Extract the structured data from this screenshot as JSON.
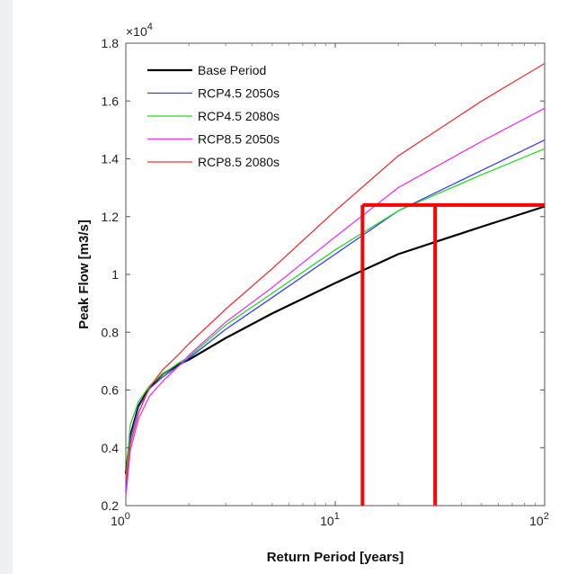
{
  "chart_data": {
    "type": "line",
    "xscale": "log",
    "xlim": [
      1,
      100
    ],
    "ylim": [
      2000,
      18000
    ],
    "y_exponent_label": "×10",
    "y_exponent_power": "4",
    "xlabel": "Return Period [years]",
    "ylabel": "Peak Flow [m3/s]",
    "x_ticks": [
      {
        "value": 1,
        "base": "10",
        "exp": "0"
      },
      {
        "value": 10,
        "base": "10",
        "exp": "1"
      },
      {
        "value": 100,
        "base": "10",
        "exp": "2"
      }
    ],
    "y_ticks": [
      {
        "value": 2000,
        "label": "0.2"
      },
      {
        "value": 4000,
        "label": "0.4"
      },
      {
        "value": 6000,
        "label": "0.6"
      },
      {
        "value": 8000,
        "label": "0.8"
      },
      {
        "value": 10000,
        "label": "1"
      },
      {
        "value": 12000,
        "label": "1.2"
      },
      {
        "value": 14000,
        "label": "1.4"
      },
      {
        "value": 16000,
        "label": "1.6"
      },
      {
        "value": 18000,
        "label": "1.8"
      }
    ],
    "legend_position": "top-left",
    "series": [
      {
        "name": "Base Period",
        "color": "#000000",
        "x": [
          1,
          1.05,
          1.15,
          1.3,
          1.5,
          1.8,
          2,
          3,
          5,
          10,
          20,
          50,
          100
        ],
        "y": [
          3100,
          4400,
          5450,
          6100,
          6550,
          6900,
          7050,
          7800,
          8650,
          9700,
          10700,
          11650,
          12350
        ]
      },
      {
        "name": "RCP4.5 2050s",
        "color": "#3a3aff",
        "x": [
          1,
          1.05,
          1.15,
          1.3,
          1.5,
          1.8,
          2,
          3,
          5,
          10,
          20,
          50,
          100
        ],
        "y": [
          2500,
          4300,
          5400,
          6050,
          6450,
          6850,
          7100,
          8100,
          9200,
          10700,
          12200,
          13600,
          14650
        ]
      },
      {
        "name": "RCP4.5 2080s",
        "color": "#22dd22",
        "x": [
          1,
          1.05,
          1.15,
          1.3,
          1.5,
          1.8,
          2,
          3,
          5,
          10,
          20,
          50,
          100
        ],
        "y": [
          2900,
          4800,
          5600,
          6150,
          6550,
          6950,
          7150,
          8250,
          9350,
          10850,
          12200,
          13450,
          14350
        ]
      },
      {
        "name": "RCP8.5 2050s",
        "color": "#ee33ee",
        "x": [
          1,
          1.05,
          1.15,
          1.3,
          1.5,
          1.8,
          2,
          3,
          5,
          10,
          20,
          50,
          100
        ],
        "y": [
          2300,
          3900,
          5000,
          5800,
          6300,
          6850,
          7200,
          8350,
          9550,
          11300,
          13000,
          14600,
          15750
        ]
      },
      {
        "name": "RCP8.5 2080s",
        "color": "#ee3333",
        "x": [
          1,
          1.05,
          1.15,
          1.3,
          1.5,
          1.8,
          2,
          3,
          5,
          10,
          20,
          50,
          100
        ],
        "y": [
          2900,
          4100,
          5200,
          6100,
          6700,
          7250,
          7600,
          8800,
          10200,
          12200,
          14100,
          16000,
          17300
        ]
      }
    ],
    "annotation": {
      "color": "#ff0000",
      "hline_y": 12400,
      "hline_x": [
        13.5,
        100
      ],
      "vlines": [
        {
          "x": 13.5,
          "y": [
            2000,
            12400
          ]
        },
        {
          "x": 30,
          "y": [
            2000,
            12400
          ]
        }
      ]
    }
  }
}
